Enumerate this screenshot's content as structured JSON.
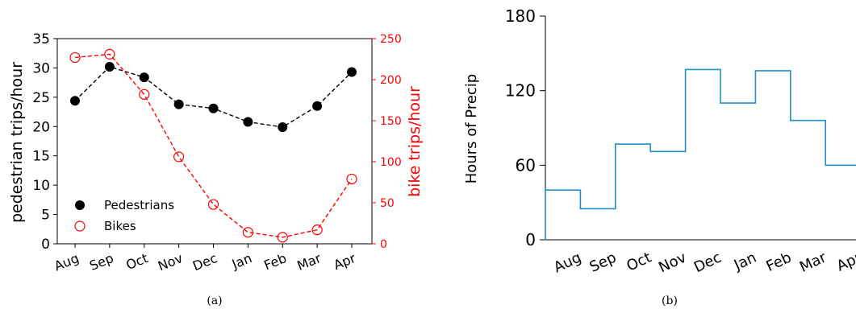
{
  "chart_data": [
    {
      "type": "line",
      "caption": "(a)",
      "categories": [
        "Aug",
        "Sep",
        "Oct",
        "Nov",
        "Dec",
        "Jan",
        "Feb",
        "Mar",
        "Apr"
      ],
      "ylabel": "pedestrian trips/hour",
      "ylim": [
        0,
        35
      ],
      "yticks": [
        0,
        5,
        10,
        15,
        20,
        25,
        30,
        35
      ],
      "y2label": "bike trips/hour",
      "y2lim": [
        0,
        250
      ],
      "y2ticks": [
        0,
        50,
        100,
        150,
        200,
        250
      ],
      "grid": false,
      "legend_position": "lower-left",
      "series": [
        {
          "name": "Pedestrians",
          "axis": "left",
          "color": "#000000",
          "marker": "filled-circle",
          "line_style": "dashed",
          "values": [
            24.4,
            30.2,
            28.4,
            23.8,
            23.1,
            20.8,
            19.9,
            23.5,
            29.3
          ]
        },
        {
          "name": "Bikes",
          "axis": "right",
          "color": "#ff0000",
          "marker": "open-circle",
          "line_style": "dashed",
          "values": [
            227,
            231,
            182,
            106,
            48,
            14,
            8,
            17,
            79
          ]
        }
      ]
    },
    {
      "type": "step",
      "caption": "(b)",
      "categories": [
        "Aug",
        "Sep",
        "Oct",
        "Nov",
        "Dec",
        "Jan",
        "Feb",
        "Mar",
        "Apr"
      ],
      "ylabel": "Hours of Precip",
      "ylim": [
        0,
        180
      ],
      "yticks": [
        0,
        60,
        120,
        180
      ],
      "grid": false,
      "series": [
        {
          "name": "",
          "color": "#1f8fc9",
          "values": [
            40,
            25,
            77,
            71,
            137,
            110,
            136,
            96,
            60
          ]
        }
      ]
    }
  ]
}
